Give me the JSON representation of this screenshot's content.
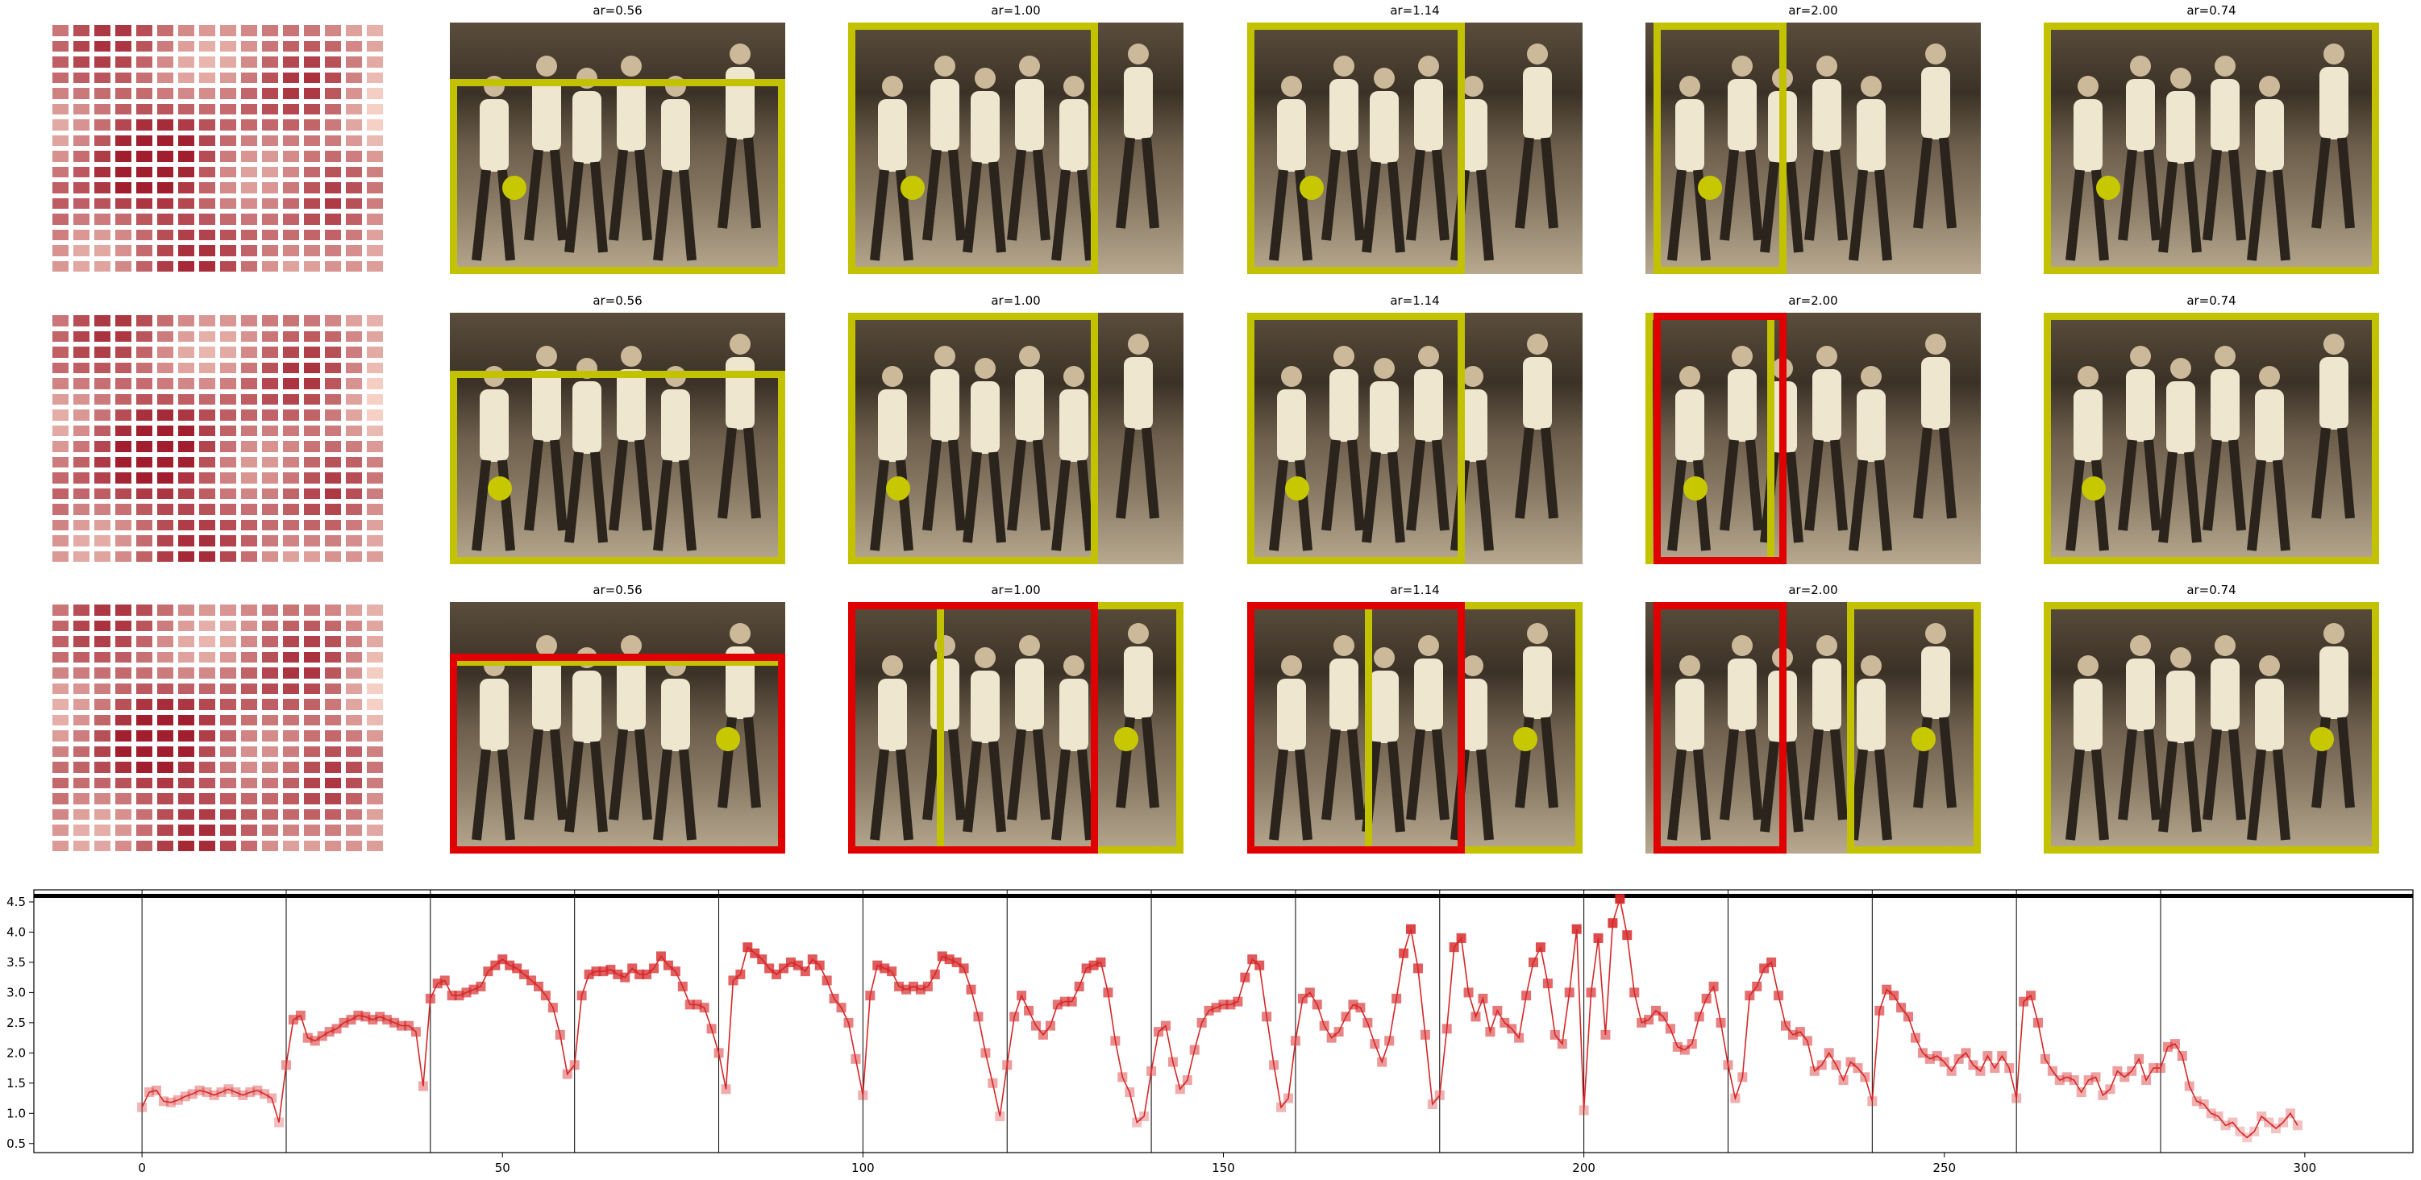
{
  "colors": {
    "box_yellow": "#c2c200",
    "box_red": "#e00000",
    "line": "#d62728",
    "marker": "#d62728"
  },
  "panels": {
    "rows": [
      {
        "titles": [
          "ar=0.56",
          "ar=1.00",
          "ar=1.14",
          "ar=2.00",
          "ar=0.74"
        ]
      },
      {
        "titles": [
          "ar=0.56",
          "ar=1.00",
          "ar=1.14",
          "ar=2.00",
          "ar=0.74"
        ]
      },
      {
        "titles": [
          "ar=0.56",
          "ar=1.00",
          "ar=1.14",
          "ar=2.00",
          "ar=0.74"
        ]
      }
    ]
  },
  "chart_data": {
    "type": "line",
    "xlim": [
      -15,
      315
    ],
    "ylim": [
      0.35,
      4.7
    ],
    "x_ticks": [
      "0",
      "50",
      "100",
      "150",
      "200",
      "250",
      "300"
    ],
    "y_ticks": [
      "0.5",
      "1.0",
      "1.5",
      "2.0",
      "2.5",
      "3.0",
      "3.5",
      "4.0",
      "4.5"
    ],
    "horizontal_line": 4.6,
    "vertical_lines": [
      0,
      20,
      40,
      60,
      80,
      100,
      120,
      140,
      160,
      180,
      200,
      220,
      240,
      260,
      280
    ],
    "series": [
      {
        "x": [
          0,
          1,
          2,
          3,
          4,
          5,
          6,
          7,
          8,
          9,
          10,
          11,
          12,
          13,
          14,
          15,
          16,
          17,
          18,
          19,
          20,
          21,
          22,
          23,
          24,
          25,
          26,
          27,
          28,
          29,
          30,
          31,
          32,
          33,
          34,
          35,
          36,
          37,
          38,
          39,
          40,
          41,
          42,
          43,
          44,
          45,
          46,
          47,
          48,
          49,
          50,
          51,
          52,
          53,
          54,
          55,
          56,
          57,
          58,
          59,
          60,
          61,
          62,
          63,
          64,
          65,
          66,
          67,
          68,
          69,
          70,
          71,
          72,
          73,
          74,
          75,
          76,
          77,
          78,
          79,
          80,
          81,
          82,
          83,
          84,
          85,
          86,
          87,
          88,
          89,
          90,
          91,
          92,
          93,
          94,
          95,
          96,
          97,
          98,
          99,
          100,
          101,
          102,
          103,
          104,
          105,
          106,
          107,
          108,
          109,
          110,
          111,
          112,
          113,
          114,
          115,
          116,
          117,
          118,
          119,
          120,
          121,
          122,
          123,
          124,
          125,
          126,
          127,
          128,
          129,
          130,
          131,
          132,
          133,
          134,
          135,
          136,
          137,
          138,
          139,
          140,
          141,
          142,
          143,
          144,
          145,
          146,
          147,
          148,
          149,
          150,
          151,
          152,
          153,
          154,
          155,
          156,
          157,
          158,
          159,
          160,
          161,
          162,
          163,
          164,
          165,
          166,
          167,
          168,
          169,
          170,
          171,
          172,
          173,
          174,
          175,
          176,
          177,
          178,
          179,
          180,
          181,
          182,
          183,
          184,
          185,
          186,
          187,
          188,
          189,
          190,
          191,
          192,
          193,
          194,
          195,
          196,
          197,
          198,
          199,
          200,
          201,
          202,
          203,
          204,
          205,
          206,
          207,
          208,
          209,
          210,
          211,
          212,
          213,
          214,
          215,
          216,
          217,
          218,
          219,
          220,
          221,
          222,
          223,
          224,
          225,
          226,
          227,
          228,
          229,
          230,
          231,
          232,
          233,
          234,
          235,
          236,
          237,
          238,
          239,
          240,
          241,
          242,
          243,
          244,
          245,
          246,
          247,
          248,
          249,
          250,
          251,
          252,
          253,
          254,
          255,
          256,
          257,
          258,
          259,
          260,
          261,
          262,
          263,
          264,
          265,
          266,
          267,
          268,
          269,
          270,
          271,
          272,
          273,
          274,
          275,
          276,
          277,
          278,
          279,
          280,
          281,
          282,
          283,
          284,
          285,
          286,
          287,
          288,
          289,
          290,
          291,
          292,
          293,
          294,
          295,
          296,
          297,
          298,
          299
        ],
        "y": [
          1.1,
          1.35,
          1.38,
          1.2,
          1.18,
          1.22,
          1.28,
          1.32,
          1.38,
          1.35,
          1.3,
          1.35,
          1.4,
          1.35,
          1.3,
          1.35,
          1.38,
          1.32,
          1.25,
          0.85,
          1.8,
          2.55,
          2.62,
          2.25,
          2.2,
          2.28,
          2.35,
          2.4,
          2.5,
          2.55,
          2.62,
          2.6,
          2.55,
          2.6,
          2.55,
          2.5,
          2.45,
          2.45,
          2.35,
          1.45,
          2.9,
          3.15,
          3.2,
          2.95,
          2.95,
          3.0,
          3.05,
          3.1,
          3.35,
          3.45,
          3.55,
          3.45,
          3.4,
          3.3,
          3.2,
          3.1,
          2.95,
          2.75,
          2.3,
          1.65,
          1.8,
          2.95,
          3.3,
          3.35,
          3.35,
          3.38,
          3.3,
          3.25,
          3.4,
          3.3,
          3.3,
          3.4,
          3.6,
          3.45,
          3.35,
          3.1,
          2.8,
          2.8,
          2.75,
          2.4,
          2.0,
          1.4,
          3.2,
          3.3,
          3.75,
          3.65,
          3.55,
          3.4,
          3.3,
          3.4,
          3.5,
          3.45,
          3.35,
          3.55,
          3.45,
          3.2,
          2.9,
          2.75,
          2.5,
          1.9,
          1.3,
          2.95,
          3.45,
          3.4,
          3.35,
          3.1,
          3.05,
          3.1,
          3.05,
          3.1,
          3.3,
          3.6,
          3.55,
          3.5,
          3.4,
          3.05,
          2.6,
          2.0,
          1.5,
          0.95,
          1.8,
          2.6,
          2.95,
          2.7,
          2.45,
          2.3,
          2.45,
          2.8,
          2.85,
          2.85,
          3.1,
          3.4,
          3.45,
          3.5,
          3.0,
          2.2,
          1.6,
          1.35,
          0.85,
          0.95,
          1.7,
          2.35,
          2.45,
          1.85,
          1.4,
          1.55,
          2.05,
          2.5,
          2.7,
          2.75,
          2.8,
          2.8,
          2.85,
          3.25,
          3.55,
          3.45,
          2.6,
          1.8,
          1.1,
          1.25,
          2.2,
          2.9,
          3.0,
          2.8,
          2.45,
          2.25,
          2.35,
          2.6,
          2.8,
          2.75,
          2.5,
          2.15,
          1.85,
          2.2,
          2.9,
          3.65,
          4.05,
          3.4,
          2.3,
          1.15,
          1.3,
          2.4,
          3.75,
          3.9,
          3.0,
          2.6,
          2.9,
          2.35,
          2.7,
          2.5,
          2.4,
          2.25,
          2.95,
          3.5,
          3.75,
          3.15,
          2.3,
          2.15,
          3.0,
          4.05,
          1.05,
          3.0,
          3.9,
          2.3,
          4.15,
          4.55,
          3.95,
          3.0,
          2.5,
          2.55,
          2.7,
          2.6,
          2.4,
          2.1,
          2.05,
          2.15,
          2.6,
          2.9,
          3.1,
          2.5,
          1.8,
          1.25,
          1.6,
          2.95,
          3.1,
          3.4,
          3.5,
          2.95,
          2.45,
          2.3,
          2.35,
          2.2,
          1.7,
          1.8,
          2.0,
          1.8,
          1.55,
          1.85,
          1.75,
          1.6,
          1.2,
          2.7,
          3.05,
          2.95,
          2.75,
          2.6,
          2.25,
          2.0,
          1.9,
          1.95,
          1.85,
          1.7,
          1.9,
          2.0,
          1.8,
          1.7,
          1.95,
          1.75,
          1.95,
          1.75,
          1.25,
          2.85,
          2.95,
          2.5,
          1.9,
          1.7,
          1.55,
          1.6,
          1.55,
          1.35,
          1.55,
          1.6,
          1.3,
          1.4,
          1.7,
          1.6,
          1.7,
          1.9,
          1.55,
          1.75,
          1.75,
          2.1,
          2.15,
          1.95,
          1.45,
          1.2,
          1.15,
          1.0,
          0.95,
          0.8,
          0.85,
          0.7,
          0.6,
          0.7,
          0.95,
          0.85,
          0.75,
          0.85,
          1.0,
          0.8
        ]
      }
    ]
  }
}
